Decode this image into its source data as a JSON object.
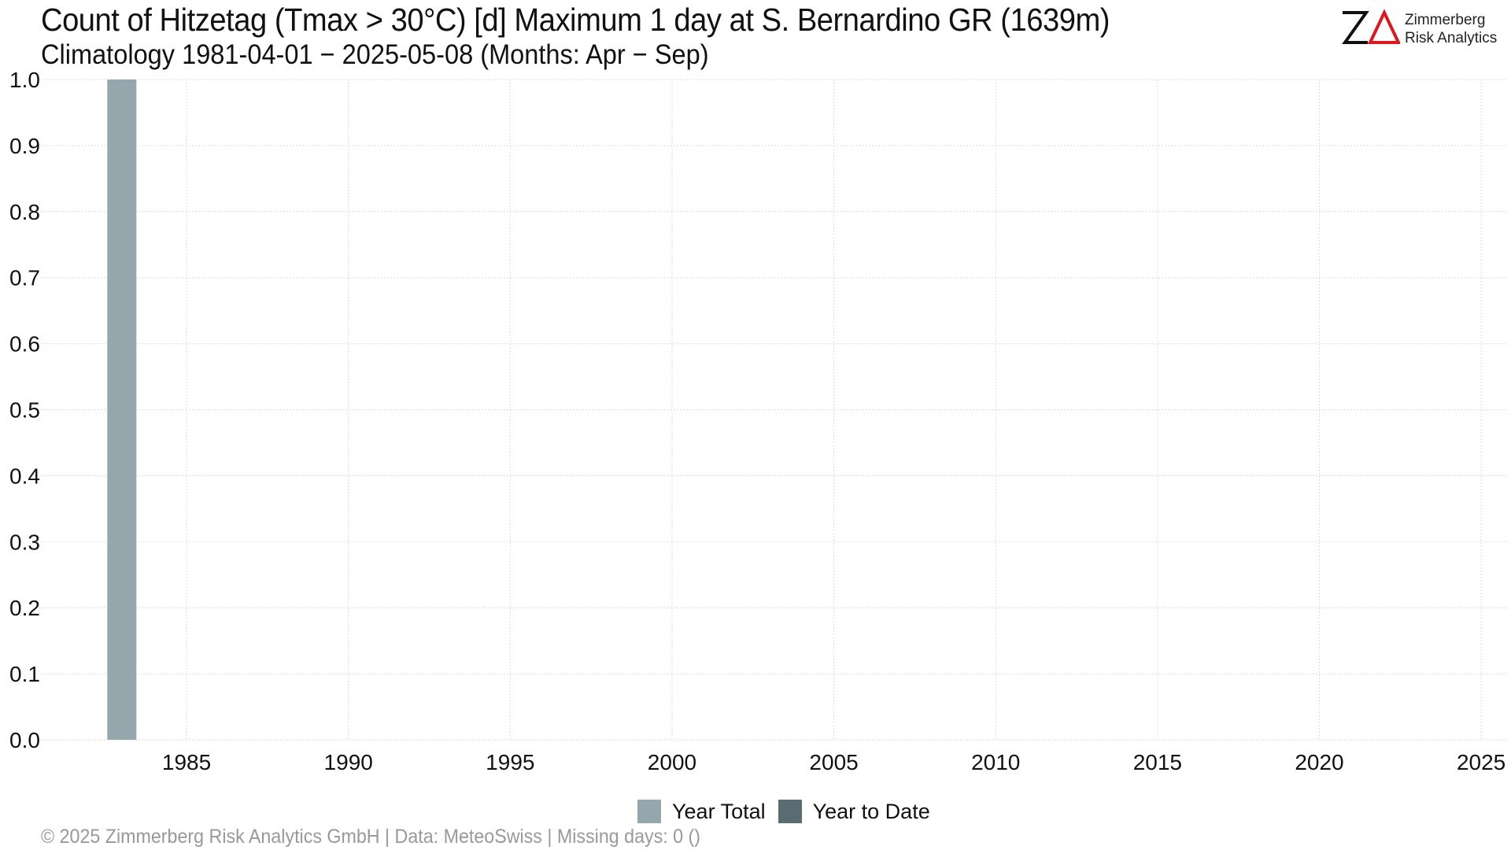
{
  "chart_data": {
    "type": "bar",
    "title": "Count of Hitzetag (Tmax > 30°C) [d] Maximum 1 day at S. Bernardino  GR (1639m)",
    "subtitle": "Climatology 1981-04-01 − 2025-05-08 (Months: Apr − Sep)",
    "xlabel": "",
    "ylabel": "",
    "xlim": [
      1980.5,
      2025.8
    ],
    "ylim": [
      0,
      1.0
    ],
    "x_ticks": [
      1985,
      1990,
      1995,
      2000,
      2005,
      2010,
      2015,
      2020,
      2025
    ],
    "y_ticks": [
      0.0,
      0.1,
      0.2,
      0.3,
      0.4,
      0.5,
      0.6,
      0.7,
      0.8,
      0.9,
      1.0
    ],
    "x_tick_labels": [
      "1985",
      "1990",
      "1995",
      "2000",
      "2005",
      "2010",
      "2015",
      "2020",
      "2025"
    ],
    "y_tick_labels": [
      "0.0",
      "0.1",
      "0.2",
      "0.3",
      "0.4",
      "0.5",
      "0.6",
      "0.7",
      "0.8",
      "0.9",
      "1.0"
    ],
    "grid": true,
    "legend_position": "bottom-center",
    "series": [
      {
        "name": "Year Total",
        "color": "#95a6ad",
        "x": [
          1983
        ],
        "values": [
          1
        ]
      },
      {
        "name": "Year to Date",
        "color": "#5b6b72",
        "x": [],
        "values": []
      }
    ]
  },
  "logo": {
    "mark": "ZΔ",
    "line1": "Zimmerberg",
    "line2": "Risk Analytics"
  },
  "footer": "©  2025 Zimmerberg Risk Analytics GmbH | Data: MeteoSwiss | Missing days: 0 ()"
}
